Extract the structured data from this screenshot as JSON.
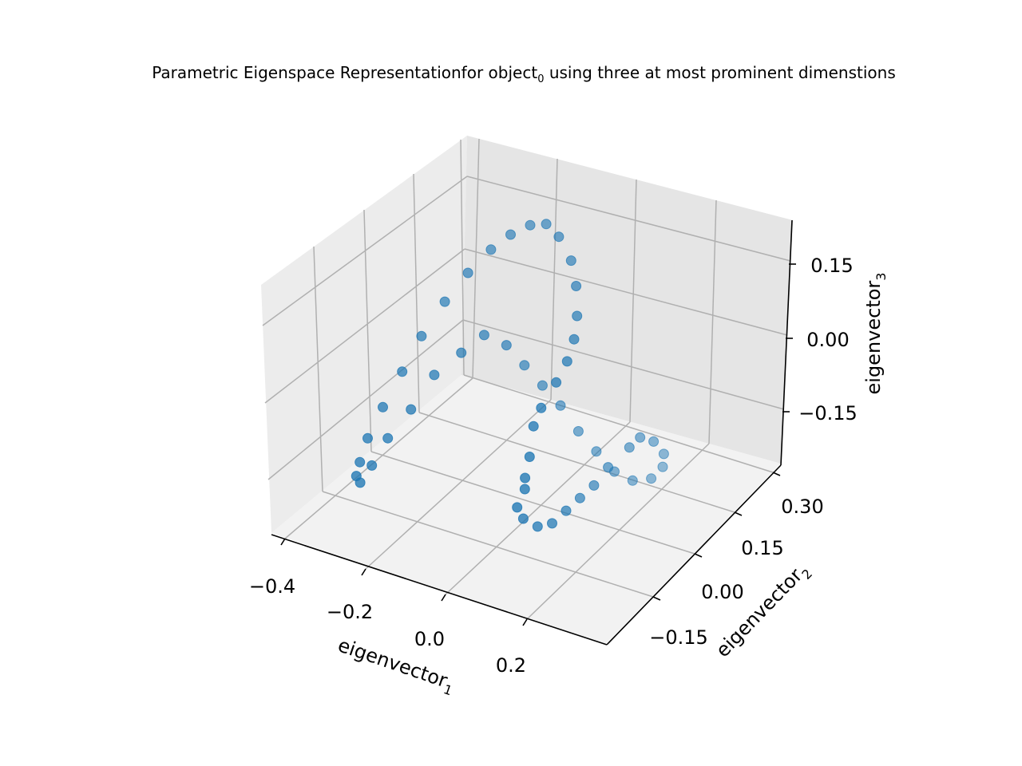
{
  "chart_data": {
    "type": "scatter",
    "title": {
      "prefix": "Parametric Eigenspace Representationfor object",
      "subscript": "0",
      "suffix": " using three at most prominent dimenstions"
    },
    "xlabel": {
      "text": "eigenvector",
      "subscript": "1"
    },
    "ylabel": {
      "text": "eigenvector",
      "subscript": "2"
    },
    "zlabel": {
      "text": "eigenvector",
      "subscript": "3"
    },
    "x_ticks": [
      "−0.4",
      "−0.2",
      "0.0",
      "0.2"
    ],
    "y_ticks": [
      "−0.15",
      "0.00",
      "0.15",
      "0.30"
    ],
    "z_ticks": [
      "−0.15",
      "0.00",
      "0.15"
    ],
    "xlim": [
      -0.45,
      0.35
    ],
    "ylim": [
      -0.22,
      0.36
    ],
    "zlim": [
      -0.22,
      0.21
    ],
    "grid": true,
    "marker_color": "#1f77b4",
    "series": [
      {
        "points": [
          [
            0.04,
            -0.05,
            -0.18
          ],
          [
            0.04,
            -0.07,
            -0.15
          ],
          [
            0.05,
            -0.06,
            -0.12
          ],
          [
            0.05,
            -0.06,
            -0.1
          ],
          [
            0.06,
            -0.06,
            -0.06
          ],
          [
            0.06,
            -0.05,
            -0.01
          ],
          [
            0.07,
            -0.04,
            0.02
          ],
          [
            0.09,
            -0.02,
            0.06
          ],
          [
            0.1,
            0.0,
            0.09
          ],
          [
            0.1,
            0.02,
            0.12
          ],
          [
            0.09,
            0.04,
            0.15
          ],
          [
            0.07,
            0.06,
            0.19
          ],
          [
            0.04,
            0.08,
            0.22
          ],
          [
            0.0,
            0.09,
            0.25
          ],
          [
            -0.04,
            0.1,
            0.26
          ],
          [
            -0.08,
            0.1,
            0.25
          ],
          [
            -0.12,
            0.09,
            0.23
          ],
          [
            -0.16,
            0.08,
            0.2
          ],
          [
            -0.2,
            0.06,
            0.16
          ],
          [
            -0.24,
            0.04,
            0.11
          ],
          [
            -0.28,
            0.02,
            0.05
          ],
          [
            -0.31,
            0.0,
            -0.01
          ],
          [
            -0.34,
            -0.02,
            -0.07
          ],
          [
            -0.36,
            -0.04,
            -0.12
          ],
          [
            -0.37,
            -0.05,
            -0.16
          ],
          [
            -0.37,
            -0.06,
            -0.18
          ],
          [
            -0.36,
            -0.06,
            -0.19
          ],
          [
            -0.34,
            -0.05,
            -0.16
          ],
          [
            -0.31,
            -0.04,
            -0.11
          ],
          [
            -0.27,
            -0.02,
            -0.06
          ],
          [
            -0.23,
            0.0,
            0.0
          ],
          [
            -0.18,
            0.02,
            0.04
          ],
          [
            -0.14,
            0.04,
            0.07
          ],
          [
            -0.1,
            0.06,
            0.05
          ],
          [
            -0.07,
            0.08,
            0.01
          ],
          [
            -0.04,
            0.1,
            -0.03
          ],
          [
            -0.01,
            0.12,
            -0.07
          ],
          [
            0.02,
            0.14,
            -0.12
          ],
          [
            0.05,
            0.16,
            -0.16
          ],
          [
            0.08,
            0.18,
            -0.2
          ],
          [
            0.11,
            0.2,
            -0.22
          ],
          [
            0.14,
            0.22,
            -0.22
          ],
          [
            0.16,
            0.23,
            -0.2
          ],
          [
            0.17,
            0.22,
            -0.17
          ],
          [
            0.16,
            0.2,
            -0.14
          ],
          [
            0.15,
            0.17,
            -0.12
          ],
          [
            0.14,
            0.15,
            -0.13
          ],
          [
            0.12,
            0.11,
            -0.15
          ],
          [
            0.11,
            0.08,
            -0.17
          ],
          [
            0.1,
            0.05,
            -0.18
          ],
          [
            0.09,
            0.02,
            -0.19
          ],
          [
            0.08,
            -0.01,
            -0.2
          ],
          [
            0.06,
            -0.03,
            -0.2
          ]
        ]
      }
    ]
  }
}
